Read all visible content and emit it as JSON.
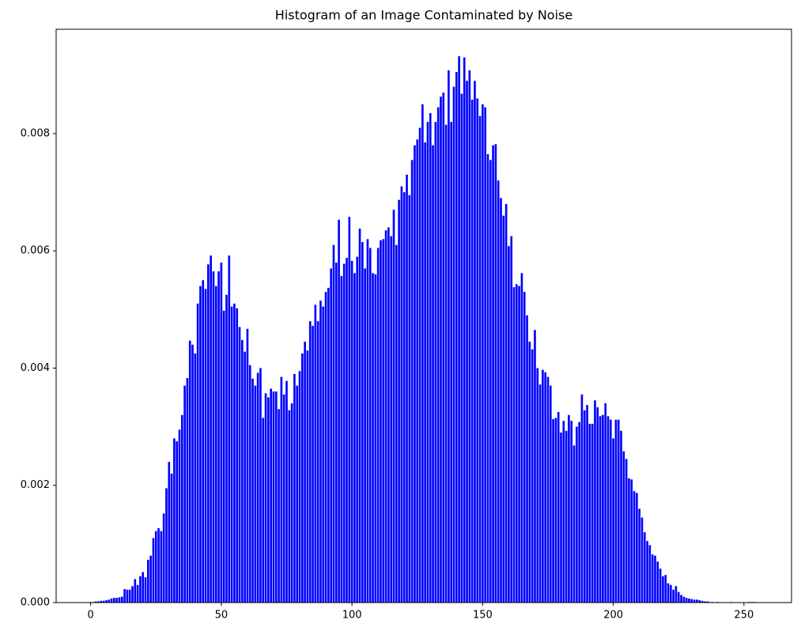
{
  "chart_data": {
    "type": "bar",
    "title": "Histogram of an Image Contaminated by Noise",
    "color": "#0000ff",
    "x": [
      0,
      1,
      2,
      3,
      4,
      5,
      6,
      7,
      8,
      9,
      10,
      11,
      12,
      13,
      14,
      15,
      16,
      17,
      18,
      19,
      20,
      21,
      22,
      23,
      24,
      25,
      26,
      27,
      28,
      29,
      30,
      31,
      32,
      33,
      34,
      35,
      36,
      37,
      38,
      39,
      40,
      41,
      42,
      43,
      44,
      45,
      46,
      47,
      48,
      49,
      50,
      51,
      52,
      53,
      54,
      55,
      56,
      57,
      58,
      59,
      60,
      61,
      62,
      63,
      64,
      65,
      66,
      67,
      68,
      69,
      70,
      71,
      72,
      73,
      74,
      75,
      76,
      77,
      78,
      79,
      80,
      81,
      82,
      83,
      84,
      85,
      86,
      87,
      88,
      89,
      90,
      91,
      92,
      93,
      94,
      95,
      96,
      97,
      98,
      99,
      100,
      101,
      102,
      103,
      104,
      105,
      106,
      107,
      108,
      109,
      110,
      111,
      112,
      113,
      114,
      115,
      116,
      117,
      118,
      119,
      120,
      121,
      122,
      123,
      124,
      125,
      126,
      127,
      128,
      129,
      130,
      131,
      132,
      133,
      134,
      135,
      136,
      137,
      138,
      139,
      140,
      141,
      142,
      143,
      144,
      145,
      146,
      147,
      148,
      149,
      150,
      151,
      152,
      153,
      154,
      155,
      156,
      157,
      158,
      159,
      160,
      161,
      162,
      163,
      164,
      165,
      166,
      167,
      168,
      169,
      170,
      171,
      172,
      173,
      174,
      175,
      176,
      177,
      178,
      179,
      180,
      181,
      182,
      183,
      184,
      185,
      186,
      187,
      188,
      189,
      190,
      191,
      192,
      193,
      194,
      195,
      196,
      197,
      198,
      199,
      200,
      201,
      202,
      203,
      204,
      205,
      206,
      207,
      208,
      209,
      210,
      211,
      212,
      213,
      214,
      215,
      216,
      217,
      218,
      219,
      220,
      221,
      222,
      223,
      224,
      225,
      226,
      227,
      228,
      229,
      230,
      231,
      232,
      233,
      234,
      235,
      236,
      237,
      238,
      239,
      240,
      241,
      242,
      243,
      244,
      245,
      246,
      247,
      248,
      249,
      250,
      251,
      252,
      253,
      254,
      255
    ],
    "values": [
      1e-05,
      1e-05,
      2e-05,
      2e-05,
      3e-05,
      3e-05,
      4e-05,
      5e-05,
      7e-05,
      8e-05,
      8e-05,
      9e-05,
      0.0001,
      0.00023,
      0.00022,
      0.00022,
      0.00028,
      0.0004,
      0.0003,
      0.00045,
      0.00052,
      0.00043,
      0.00073,
      0.0008,
      0.0011,
      0.00122,
      0.00127,
      0.00122,
      0.00152,
      0.00195,
      0.0024,
      0.0022,
      0.0028,
      0.00275,
      0.00295,
      0.0032,
      0.0037,
      0.00383,
      0.00447,
      0.0044,
      0.00425,
      0.0051,
      0.0054,
      0.0055,
      0.00535,
      0.00577,
      0.00592,
      0.00565,
      0.0054,
      0.00565,
      0.0058,
      0.00498,
      0.00525,
      0.00592,
      0.00505,
      0.0051,
      0.00502,
      0.0047,
      0.00448,
      0.00428,
      0.00467,
      0.00405,
      0.00382,
      0.0037,
      0.00392,
      0.004,
      0.00315,
      0.00357,
      0.0035,
      0.00365,
      0.0036,
      0.0036,
      0.0033,
      0.00385,
      0.00355,
      0.00378,
      0.00328,
      0.0034,
      0.0039,
      0.0037,
      0.00395,
      0.00425,
      0.00445,
      0.0043,
      0.0048,
      0.00472,
      0.00508,
      0.0048,
      0.00515,
      0.00505,
      0.0053,
      0.00537,
      0.0057,
      0.0061,
      0.0058,
      0.00653,
      0.00557,
      0.00578,
      0.00588,
      0.00658,
      0.00583,
      0.00562,
      0.0059,
      0.00638,
      0.00615,
      0.0057,
      0.0062,
      0.00605,
      0.00562,
      0.0056,
      0.00605,
      0.00618,
      0.0062,
      0.00635,
      0.0064,
      0.00625,
      0.0067,
      0.0061,
      0.00687,
      0.0071,
      0.007,
      0.0073,
      0.00695,
      0.00755,
      0.0078,
      0.0079,
      0.0081,
      0.0085,
      0.00785,
      0.0082,
      0.00835,
      0.0078,
      0.0082,
      0.00845,
      0.00863,
      0.0087,
      0.00815,
      0.00908,
      0.0082,
      0.0088,
      0.00905,
      0.00932,
      0.00868,
      0.0093,
      0.0089,
      0.00908,
      0.00858,
      0.0089,
      0.0086,
      0.0083,
      0.0085,
      0.00845,
      0.00765,
      0.00755,
      0.0078,
      0.00782,
      0.0072,
      0.0069,
      0.0066,
      0.0068,
      0.00608,
      0.00625,
      0.00538,
      0.00543,
      0.0054,
      0.00562,
      0.0053,
      0.0049,
      0.00445,
      0.00432,
      0.00465,
      0.004,
      0.00372,
      0.00397,
      0.00393,
      0.00385,
      0.0037,
      0.00313,
      0.00315,
      0.00325,
      0.0029,
      0.0031,
      0.00293,
      0.0032,
      0.0031,
      0.00268,
      0.003,
      0.00308,
      0.00355,
      0.00328,
      0.00337,
      0.00305,
      0.00305,
      0.00345,
      0.00333,
      0.00318,
      0.0032,
      0.0034,
      0.00318,
      0.00312,
      0.0028,
      0.00312,
      0.00312,
      0.00293,
      0.00258,
      0.00245,
      0.00212,
      0.0021,
      0.0019,
      0.00187,
      0.0016,
      0.00145,
      0.0012,
      0.00105,
      0.00098,
      0.00082,
      0.0008,
      0.0007,
      0.00058,
      0.00045,
      0.00047,
      0.00033,
      0.0003,
      0.00022,
      0.00028,
      0.00018,
      0.00013,
      0.0001,
      8e-05,
      7e-05,
      6e-05,
      5e-05,
      5e-05,
      4e-05,
      3e-05,
      2e-05,
      2e-05,
      1e-05,
      1e-05,
      0,
      1e-05,
      0,
      0,
      0,
      0,
      1e-05,
      0,
      0,
      0,
      0,
      0,
      0,
      1e-05,
      1e-05,
      1e-05,
      0
    ],
    "xlim": [
      -13.2,
      268.2
    ],
    "xticks": [
      0,
      50,
      100,
      150,
      200,
      250
    ],
    "ylim": [
      0,
      0.00978
    ],
    "yticks": [
      {
        "value": 0,
        "label": "0.000"
      },
      {
        "value": 0.002,
        "label": "0.002"
      },
      {
        "value": 0.004,
        "label": "0.004"
      },
      {
        "value": 0.006,
        "label": "0.006"
      },
      {
        "value": 0.008,
        "label": "0.008"
      }
    ]
  }
}
